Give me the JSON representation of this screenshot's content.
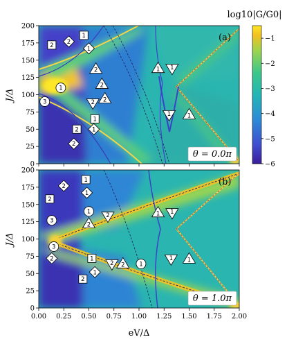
{
  "chart_data": {
    "type": "heatmap",
    "colorbar": {
      "label": "log10|G/G0|",
      "range": [
        -6,
        -0.5
      ],
      "ticks": [
        -1,
        -2,
        -3,
        -4,
        -5,
        -6
      ],
      "tick_labels": [
        "−1",
        "−2",
        "−3",
        "−4",
        "−5",
        "−6"
      ],
      "colormap": [
        "#3b1d9a",
        "#3e4fcf",
        "#2c8bd6",
        "#23b6b5",
        "#3dc78a",
        "#9dd44f",
        "#f2c020",
        "#fde725"
      ]
    },
    "x_axis": {
      "label": "eV/Δ",
      "range": [
        0,
        2
      ],
      "ticks": [
        0,
        0.25,
        0.5,
        0.75,
        1.0,
        1.25,
        1.5,
        1.75,
        2.0
      ],
      "tick_labels": [
        "0.00",
        "0.25",
        "0.50",
        "0.75",
        "1.00",
        "1.25",
        "1.50",
        "1.75",
        "2.00"
      ]
    },
    "panels": [
      {
        "id": "a",
        "panel_label": "(a)",
        "annotation": "θ = 0.0π",
        "ylabel": "J/Δ",
        "ylim": [
          0,
          200
        ],
        "yticks": [
          0,
          25,
          50,
          75,
          100,
          125,
          150,
          175,
          200
        ],
        "markers": [
          {
            "shape": "square",
            "label": "2",
            "x": 0.13,
            "y": 172
          },
          {
            "shape": "diamond",
            "label": "2",
            "x": 0.3,
            "y": 177
          },
          {
            "shape": "square",
            "label": "1",
            "x": 0.45,
            "y": 186
          },
          {
            "shape": "diamond",
            "label": "1",
            "x": 0.5,
            "y": 167
          },
          {
            "shape": "circle",
            "label": "1",
            "x": 0.22,
            "y": 110
          },
          {
            "shape": "circle",
            "label": "3",
            "x": 0.06,
            "y": 90
          },
          {
            "shape": "triangle-up",
            "label": "2",
            "x": 0.57,
            "y": 137
          },
          {
            "shape": "triangle-up",
            "label": "2",
            "x": 0.63,
            "y": 115
          },
          {
            "shape": "triangle-up",
            "label": "2",
            "x": 0.66,
            "y": 94
          },
          {
            "shape": "triangle-down",
            "label": "2",
            "x": 0.54,
            "y": 88
          },
          {
            "shape": "square",
            "label": "1",
            "x": 0.56,
            "y": 65
          },
          {
            "shape": "square",
            "label": "2",
            "x": 0.38,
            "y": 50
          },
          {
            "shape": "diamond",
            "label": "1",
            "x": 0.55,
            "y": 50
          },
          {
            "shape": "diamond",
            "label": "2",
            "x": 0.35,
            "y": 29
          },
          {
            "shape": "triangle-up",
            "label": "1",
            "x": 1.19,
            "y": 138
          },
          {
            "shape": "triangle-down",
            "label": "1",
            "x": 1.33,
            "y": 138
          },
          {
            "shape": "triangle-down",
            "label": "1",
            "x": 1.3,
            "y": 71
          },
          {
            "shape": "triangle-up",
            "label": "1",
            "x": 1.5,
            "y": 71
          }
        ]
      },
      {
        "id": "b",
        "panel_label": "(b)",
        "annotation": "θ = 1.0π",
        "ylabel": "J/Δ",
        "ylim": [
          0,
          200
        ],
        "yticks": [
          0,
          25,
          50,
          75,
          100,
          125,
          150,
          175,
          200
        ],
        "markers": [
          {
            "shape": "diamond",
            "label": "2",
            "x": 0.25,
            "y": 177
          },
          {
            "shape": "square",
            "label": "1",
            "x": 0.47,
            "y": 186
          },
          {
            "shape": "diamond",
            "label": "1",
            "x": 0.48,
            "y": 167
          },
          {
            "shape": "square",
            "label": "2",
            "x": 0.11,
            "y": 158
          },
          {
            "shape": "circle",
            "label": "1",
            "x": 0.5,
            "y": 140
          },
          {
            "shape": "triangle-down",
            "label": "2",
            "x": 0.69,
            "y": 133
          },
          {
            "shape": "circle",
            "label": "3",
            "x": 0.13,
            "y": 127
          },
          {
            "shape": "triangle-up",
            "label": "2",
            "x": 0.5,
            "y": 122
          },
          {
            "shape": "circle",
            "label": "3",
            "x": 0.15,
            "y": 89
          },
          {
            "shape": "diamond",
            "label": "2",
            "x": 0.13,
            "y": 72
          },
          {
            "shape": "square",
            "label": "1",
            "x": 0.53,
            "y": 72
          },
          {
            "shape": "triangle-down",
            "label": "2",
            "x": 0.73,
            "y": 64
          },
          {
            "shape": "triangle-up",
            "label": "2",
            "x": 0.84,
            "y": 64
          },
          {
            "shape": "circle",
            "label": "1",
            "x": 1.02,
            "y": 64
          },
          {
            "shape": "diamond",
            "label": "1",
            "x": 0.56,
            "y": 52
          },
          {
            "shape": "square",
            "label": "2",
            "x": 0.44,
            "y": 42
          },
          {
            "shape": "triangle-up",
            "label": "1",
            "x": 1.19,
            "y": 138
          },
          {
            "shape": "triangle-down",
            "label": "1",
            "x": 1.33,
            "y": 138
          },
          {
            "shape": "triangle-down",
            "label": "1",
            "x": 1.32,
            "y": 71
          },
          {
            "shape": "triangle-up",
            "label": "1",
            "x": 1.5,
            "y": 71
          }
        ]
      }
    ]
  }
}
